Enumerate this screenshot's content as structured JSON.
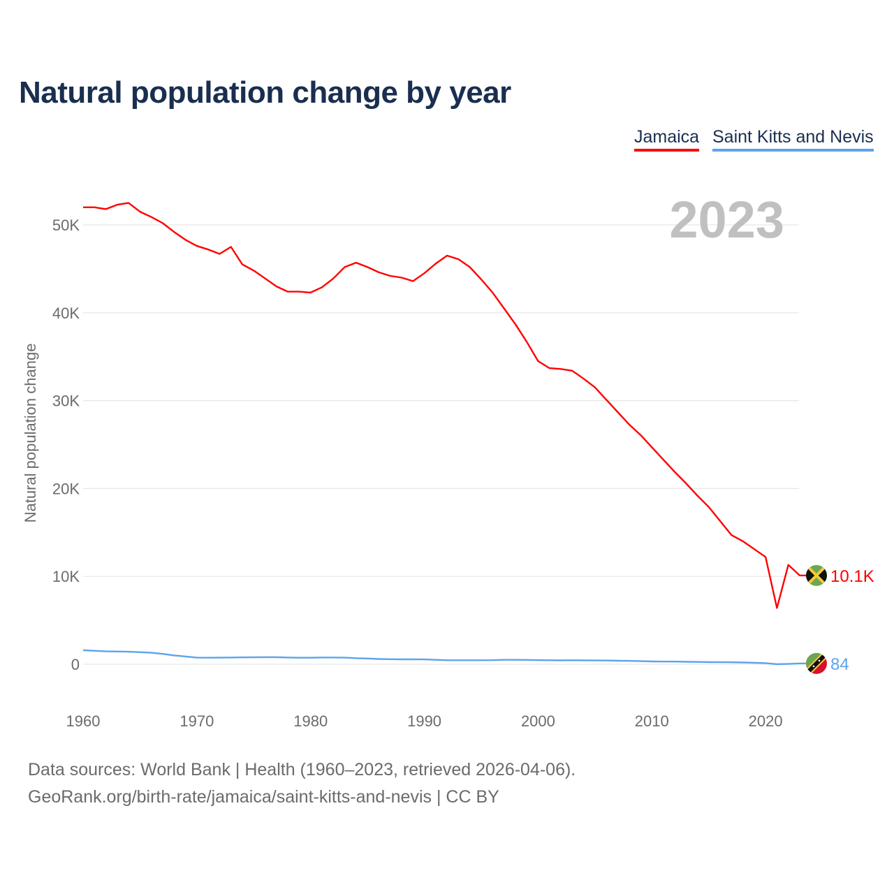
{
  "chart_data": {
    "type": "line",
    "title": "Natural population change by year",
    "xlabel": "",
    "ylabel": "Natural population change",
    "year_watermark": "2023",
    "x": [
      1960,
      1961,
      1962,
      1963,
      1964,
      1965,
      1966,
      1967,
      1968,
      1969,
      1970,
      1971,
      1972,
      1973,
      1974,
      1975,
      1976,
      1977,
      1978,
      1979,
      1980,
      1981,
      1982,
      1983,
      1984,
      1985,
      1986,
      1987,
      1988,
      1989,
      1990,
      1991,
      1992,
      1993,
      1994,
      1995,
      1996,
      1997,
      1998,
      1999,
      2000,
      2001,
      2002,
      2003,
      2004,
      2005,
      2006,
      2007,
      2008,
      2009,
      2010,
      2011,
      2012,
      2013,
      2014,
      2015,
      2016,
      2017,
      2018,
      2019,
      2020,
      2021,
      2022,
      2023
    ],
    "xlim": [
      1960,
      2023
    ],
    "ylim": [
      -5000,
      55000
    ],
    "x_ticks": [
      1960,
      1970,
      1980,
      1990,
      2000,
      2010,
      2020
    ],
    "x_tick_labels": [
      "1960",
      "1970",
      "1980",
      "1990",
      "2000",
      "2010",
      "2020"
    ],
    "y_ticks": [
      0,
      10000,
      20000,
      30000,
      40000,
      50000
    ],
    "y_tick_labels": [
      "0",
      "10K",
      "20K",
      "30K",
      "40K",
      "50K"
    ],
    "grid": true,
    "legend_position": "top-right",
    "series": [
      {
        "name": "Jamaica",
        "color": "#ff0000",
        "flag": "jamaica-flag",
        "end_label": "10.1K",
        "values": [
          52000,
          52000,
          51800,
          52300,
          52500,
          51500,
          50900,
          50200,
          49200,
          48300,
          47600,
          47200,
          46700,
          47500,
          45500,
          44800,
          43900,
          43000,
          42400,
          42400,
          42300,
          42900,
          43900,
          45200,
          45700,
          45200,
          44600,
          44200,
          44000,
          43600,
          44500,
          45600,
          46500,
          46100,
          45200,
          43800,
          42300,
          40500,
          38700,
          36700,
          34500,
          33700,
          33600,
          33400,
          32500,
          31500,
          30100,
          28700,
          27300,
          26100,
          24700,
          23300,
          21900,
          20600,
          19200,
          17900,
          16300,
          14700,
          14000,
          13100,
          12200,
          6400,
          11300,
          10100
        ]
      },
      {
        "name": "Saint Kitts and Nevis",
        "color": "#5ba4ea",
        "flag": "saint-kitts-and-nevis-flag",
        "end_label": "84",
        "values": [
          1600,
          1530,
          1460,
          1450,
          1420,
          1370,
          1300,
          1180,
          1000,
          880,
          750,
          740,
          750,
          760,
          780,
          790,
          800,
          800,
          760,
          740,
          740,
          760,
          760,
          750,
          680,
          650,
          600,
          570,
          560,
          560,
          550,
          500,
          450,
          450,
          450,
          450,
          460,
          500,
          500,
          490,
          460,
          450,
          440,
          450,
          440,
          430,
          420,
          400,
          380,
          350,
          320,
          300,
          300,
          280,
          260,
          240,
          230,
          220,
          200,
          170,
          130,
          0,
          30,
          84
        ]
      }
    ]
  },
  "footer": {
    "line1": "Data sources: World Bank | Health (1960–2023, retrieved 2026-04-06).",
    "line2": "GeoRank.org/birth-rate/jamaica/saint-kitts-and-nevis | CC BY"
  }
}
